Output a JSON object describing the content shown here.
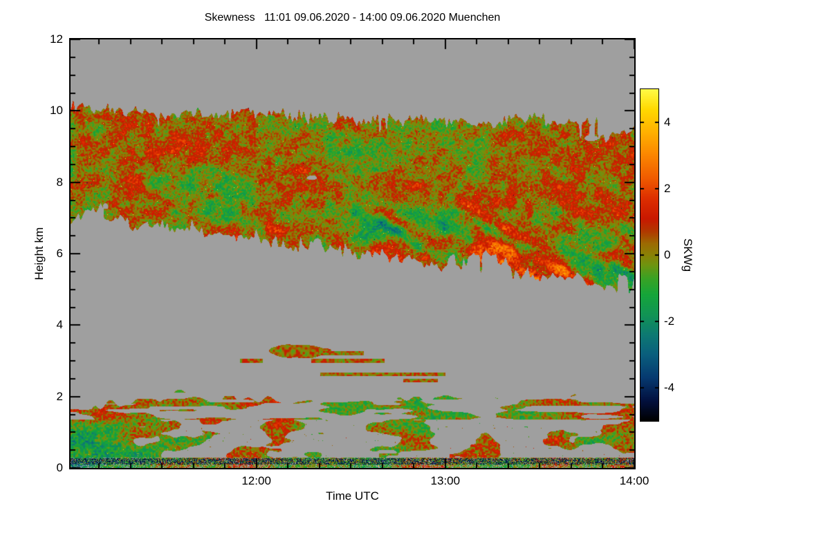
{
  "page": {
    "background": "#ffffff"
  },
  "chart_data": {
    "type": "heatmap",
    "variable": "Skewness",
    "site": "Muenchen",
    "time_range_label": "11:01 09.06.2020 - 14:00 09.06.2020",
    "title": "Skewness   11:01 09.06.2020 - 14:00 09.06.2020 Muenchen",
    "xlabel": "Time UTC",
    "ylabel": "Height km",
    "x_axis": {
      "start_minutes": 661,
      "end_minutes": 840,
      "start_label": "11:01",
      "end_label": "14:00",
      "major_ticks": [
        {
          "minutes": 720,
          "label": "12:00"
        },
        {
          "minutes": 780,
          "label": "13:00"
        },
        {
          "minutes": 840,
          "label": "14:00"
        }
      ],
      "minor_step_minutes": 10
    },
    "y_axis": {
      "min": 0,
      "max": 12,
      "major_ticks": [
        {
          "v": 0,
          "label": "0"
        },
        {
          "v": 2,
          "label": "2"
        },
        {
          "v": 4,
          "label": "4"
        },
        {
          "v": 6,
          "label": "6"
        },
        {
          "v": 8,
          "label": "8"
        },
        {
          "v": 10,
          "label": "10"
        },
        {
          "v": 12,
          "label": "12"
        }
      ],
      "minor_step": 0.5
    },
    "colorbar": {
      "label": "SKWg",
      "min": -5,
      "max": 5,
      "ticks": [
        {
          "v": 4,
          "label": "4"
        },
        {
          "v": 2,
          "label": "2"
        },
        {
          "v": 0,
          "label": "0"
        },
        {
          "v": -2,
          "label": "-2"
        },
        {
          "v": -4,
          "label": "-4"
        }
      ],
      "stops": [
        {
          "v": -5.0,
          "color": "#000000"
        },
        {
          "v": -4.4,
          "color": "#02103f"
        },
        {
          "v": -3.7,
          "color": "#063a70"
        },
        {
          "v": -3.0,
          "color": "#0a5f7d"
        },
        {
          "v": -2.4,
          "color": "#0d7a72"
        },
        {
          "v": -1.8,
          "color": "#119455"
        },
        {
          "v": -1.2,
          "color": "#15a53a"
        },
        {
          "v": -0.7,
          "color": "#3aa224"
        },
        {
          "v": -0.3,
          "color": "#6f9410"
        },
        {
          "v": 0.0,
          "color": "#8a8206"
        },
        {
          "v": 0.35,
          "color": "#9c6a02"
        },
        {
          "v": 0.7,
          "color": "#b03a00"
        },
        {
          "v": 1.1,
          "color": "#c91800"
        },
        {
          "v": 1.7,
          "color": "#dd2e00"
        },
        {
          "v": 2.3,
          "color": "#ef5a00"
        },
        {
          "v": 3.0,
          "color": "#fb8500"
        },
        {
          "v": 3.7,
          "color": "#ffb000"
        },
        {
          "v": 4.4,
          "color": "#ffd900"
        },
        {
          "v": 5.0,
          "color": "#fffb46"
        }
      ]
    },
    "no_data_color": "#9f9f9f",
    "no_data_meaning": "gray background = no signal / no data",
    "regions": {
      "cloud_layer": {
        "description": "mid-level cloud deck, mottled skewness near 0 with red/green fall streaks descending to the right",
        "top_km": [
          10.1,
          10.0,
          9.9,
          9.95,
          9.8,
          9.9,
          9.75,
          9.7,
          9.65
        ],
        "bottom_km": [
          6.95,
          6.8,
          6.55,
          6.3,
          6.0,
          5.85,
          5.6,
          5.3,
          5.1
        ],
        "mean_skewness": 0.3
      },
      "boundary_layer": {
        "description": "patchy boundary layer below ~2 km with mixed positive/negative skewness",
        "top_km": [
          1.75,
          1.95,
          2.05,
          1.85,
          1.95,
          2.0,
          1.9,
          2.0,
          1.95
        ],
        "base_km": 0,
        "mean_skewness": 0.0
      },
      "thin_layers": [
        {
          "height_km": 2.45,
          "t_start": 0.2,
          "t_end": 0.76,
          "thickness_km": 0.11
        },
        {
          "height_km": 2.62,
          "t_start": 0.25,
          "t_end": 0.7,
          "thickness_km": 0.1
        },
        {
          "height_km": 3.0,
          "t_start": 0.3,
          "t_end": 0.62,
          "thickness_km": 0.1
        },
        {
          "height_km": 3.22,
          "t_start": 0.24,
          "t_end": 0.52,
          "thickness_km": 0.12
        }
      ],
      "cloud_patch": {
        "t": 0.405,
        "height_km": 3.27,
        "rt": 0.05,
        "rh_km": 0.2
      },
      "surface_clutter_km": [
        0.09,
        0.27
      ]
    }
  }
}
